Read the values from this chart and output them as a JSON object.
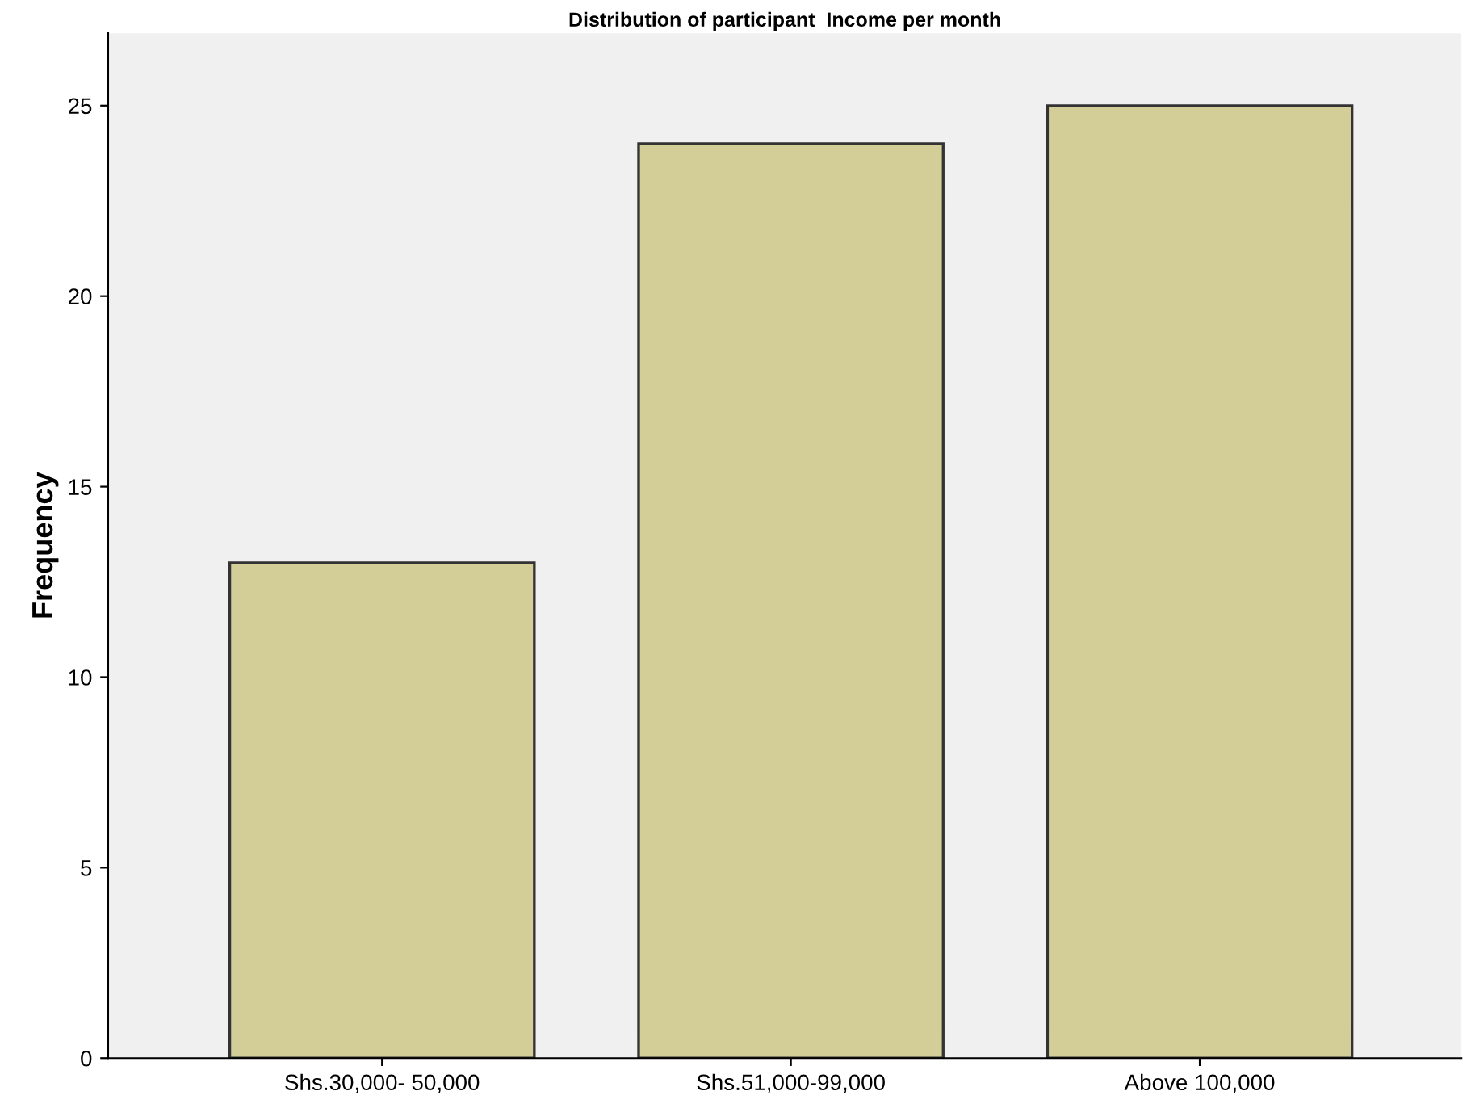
{
  "chart_data": {
    "type": "bar",
    "title": "Distribution of participant  Income per month",
    "ylabel": "Frequency",
    "categories": [
      "Shs.30,000- 50,000",
      "Shs.51,000-99,000",
      "Above 100,000"
    ],
    "values": [
      13,
      24,
      25
    ],
    "color": "#d3ce98",
    "ylim": [
      0,
      26.9
    ],
    "yticks": [
      0,
      5,
      10,
      15,
      20,
      25
    ],
    "grid": false
  }
}
